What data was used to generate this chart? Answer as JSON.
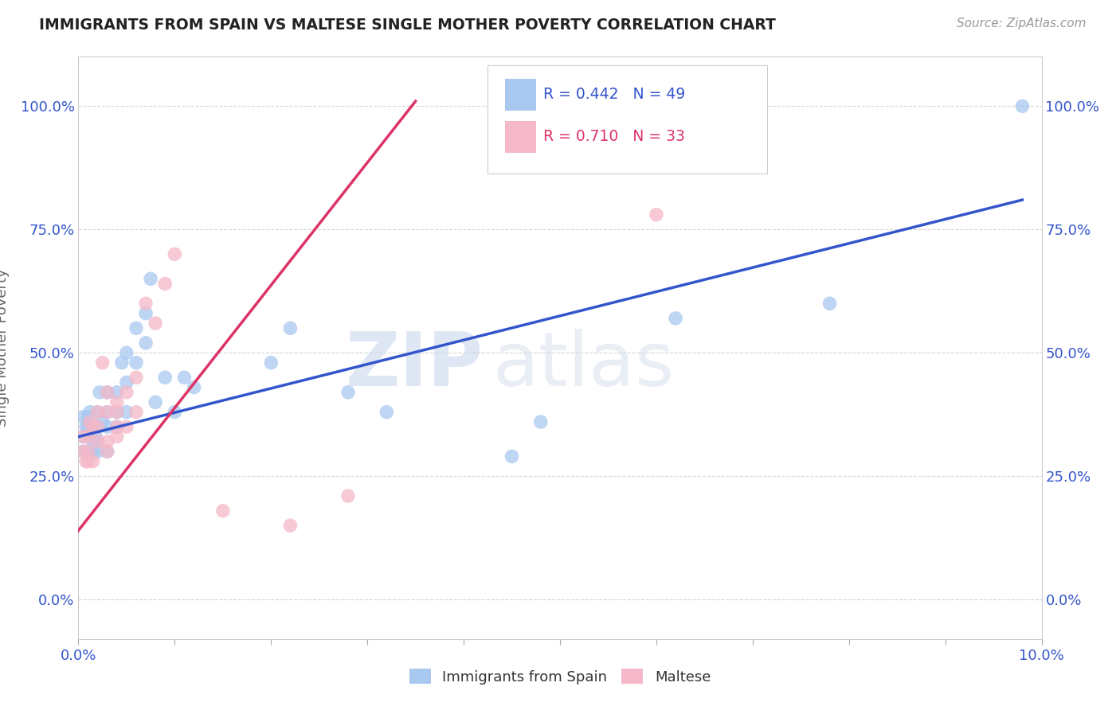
{
  "title": "IMMIGRANTS FROM SPAIN VS MALTESE SINGLE MOTHER POVERTY CORRELATION CHART",
  "source": "Source: ZipAtlas.com",
  "ylabel": "Single Mother Poverty",
  "xlim": [
    0.0,
    0.1
  ],
  "ylim": [
    -0.08,
    1.1
  ],
  "yticks": [
    0.0,
    0.25,
    0.5,
    0.75,
    1.0
  ],
  "ytick_labels": [
    "0.0%",
    "25.0%",
    "50.0%",
    "75.0%",
    "100.0%"
  ],
  "xticks": [
    0.0,
    0.01,
    0.02,
    0.03,
    0.04,
    0.05,
    0.06,
    0.07,
    0.08,
    0.09,
    0.1
  ],
  "xtick_labels": [
    "0.0%",
    "",
    "",
    "",
    "",
    "",
    "",
    "",
    "",
    "",
    "10.0%"
  ],
  "blue_color": "#A8C8F0",
  "pink_color": "#F5B8C8",
  "blue_line_color": "#3355CC",
  "pink_line_color": "#DD3366",
  "legend_r_blue": "R = 0.442",
  "legend_n_blue": "N = 49",
  "legend_r_pink": "R = 0.710",
  "legend_n_pink": "N = 33",
  "legend_label_blue": "Immigrants from Spain",
  "legend_label_pink": "Maltese",
  "watermark_zip": "ZIP",
  "watermark_atlas": "atlas",
  "blue_scatter_x": [
    0.0005,
    0.0005,
    0.0005,
    0.0008,
    0.001,
    0.001,
    0.001,
    0.001,
    0.0012,
    0.0015,
    0.0015,
    0.0015,
    0.0018,
    0.002,
    0.002,
    0.002,
    0.002,
    0.0022,
    0.0025,
    0.003,
    0.003,
    0.003,
    0.003,
    0.004,
    0.004,
    0.004,
    0.0045,
    0.005,
    0.005,
    0.005,
    0.006,
    0.006,
    0.007,
    0.007,
    0.0075,
    0.008,
    0.009,
    0.01,
    0.011,
    0.012,
    0.02,
    0.022,
    0.028,
    0.032,
    0.045,
    0.048,
    0.062,
    0.078,
    0.098
  ],
  "blue_scatter_y": [
    0.33,
    0.37,
    0.3,
    0.35,
    0.37,
    0.33,
    0.3,
    0.35,
    0.38,
    0.32,
    0.35,
    0.3,
    0.33,
    0.35,
    0.38,
    0.32,
    0.3,
    0.42,
    0.36,
    0.38,
    0.35,
    0.42,
    0.3,
    0.38,
    0.42,
    0.35,
    0.48,
    0.5,
    0.44,
    0.38,
    0.55,
    0.48,
    0.58,
    0.52,
    0.65,
    0.4,
    0.45,
    0.38,
    0.45,
    0.43,
    0.48,
    0.55,
    0.42,
    0.38,
    0.29,
    0.36,
    0.57,
    0.6,
    1.0
  ],
  "pink_scatter_x": [
    0.0005,
    0.0005,
    0.0008,
    0.001,
    0.001,
    0.001,
    0.0012,
    0.0015,
    0.0015,
    0.002,
    0.002,
    0.002,
    0.0025,
    0.003,
    0.003,
    0.003,
    0.003,
    0.004,
    0.004,
    0.004,
    0.004,
    0.005,
    0.005,
    0.006,
    0.006,
    0.007,
    0.008,
    0.009,
    0.01,
    0.015,
    0.022,
    0.028,
    0.06
  ],
  "pink_scatter_y": [
    0.3,
    0.33,
    0.28,
    0.33,
    0.28,
    0.3,
    0.36,
    0.35,
    0.28,
    0.32,
    0.35,
    0.38,
    0.48,
    0.38,
    0.32,
    0.42,
    0.3,
    0.35,
    0.4,
    0.33,
    0.38,
    0.42,
    0.35,
    0.45,
    0.38,
    0.6,
    0.56,
    0.64,
    0.7,
    0.18,
    0.15,
    0.21,
    0.78
  ],
  "blue_trendline_x": [
    0.0,
    0.098
  ],
  "blue_trendline_y": [
    0.33,
    0.81
  ],
  "pink_trendline_x": [
    -0.001,
    0.035
  ],
  "pink_trendline_y": [
    0.115,
    1.01
  ],
  "grid_color": "#CCCCCC",
  "bg_color": "#FFFFFF",
  "title_color": "#222222",
  "axis_label_color": "#3355CC"
}
